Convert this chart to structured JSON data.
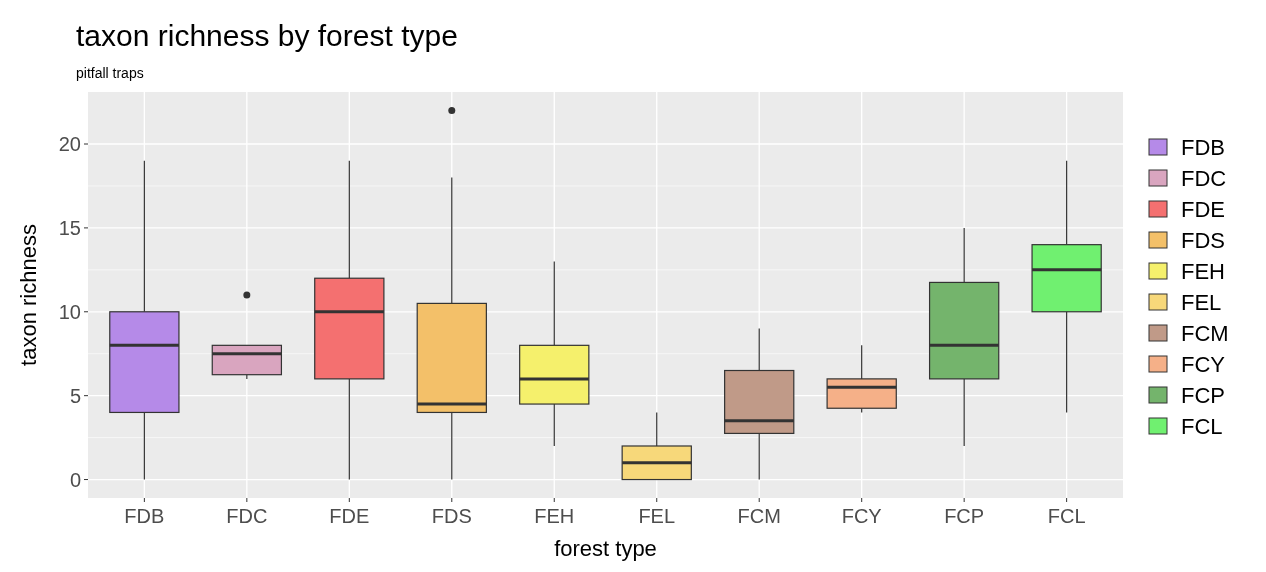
{
  "chart_data": {
    "type": "box",
    "title": "taxon richness by forest type",
    "subtitle": "pitfall traps",
    "xlabel": "forest type",
    "ylabel": "taxon richness",
    "categories": [
      "FDB",
      "FDC",
      "FDE",
      "FDS",
      "FEH",
      "FEL",
      "FCM",
      "FCY",
      "FCP",
      "FCL"
    ],
    "series": [
      {
        "name": "FDB",
        "color": "#b58ae8",
        "boxes": [
          {
            "low": 0,
            "q1": 4,
            "median": 8,
            "q3": 10,
            "high": 19
          },
          null,
          null,
          null,
          null,
          null,
          null,
          null,
          null,
          null
        ]
      },
      {
        "name": "FDC",
        "color": "#d9a5bf",
        "boxes": [
          null,
          {
            "low": 6,
            "q1": 6.25,
            "median": 7.5,
            "q3": 8,
            "high": 8,
            "outliers": [
              11
            ]
          },
          null,
          null,
          null,
          null,
          null,
          null,
          null,
          null
        ]
      },
      {
        "name": "FDE",
        "color": "#f47070",
        "boxes": [
          null,
          null,
          {
            "low": 0,
            "q1": 6,
            "median": 10,
            "q3": 12,
            "high": 19
          },
          null,
          null,
          null,
          null,
          null,
          null,
          null
        ]
      },
      {
        "name": "FDS",
        "color": "#f3c069",
        "boxes": [
          null,
          null,
          null,
          {
            "low": 0,
            "q1": 4,
            "median": 4.5,
            "q3": 10.5,
            "high": 18,
            "outliers": [
              22
            ]
          },
          null,
          null,
          null,
          null,
          null,
          null
        ]
      },
      {
        "name": "FEH",
        "color": "#f5f06c",
        "boxes": [
          null,
          null,
          null,
          null,
          {
            "low": 2,
            "q1": 4.5,
            "median": 6,
            "q3": 8,
            "high": 13
          },
          null,
          null,
          null,
          null,
          null
        ]
      },
      {
        "name": "FEL",
        "color": "#f7d87a",
        "boxes": [
          null,
          null,
          null,
          null,
          null,
          {
            "low": 0,
            "q1": 0,
            "median": 1,
            "q3": 2,
            "high": 4
          },
          null,
          null,
          null,
          null
        ]
      },
      {
        "name": "FCM",
        "color": "#c09a88",
        "boxes": [
          null,
          null,
          null,
          null,
          null,
          null,
          {
            "low": 0,
            "q1": 2.75,
            "median": 3.5,
            "q3": 6.5,
            "high": 9
          },
          null,
          null,
          null
        ]
      },
      {
        "name": "FCY",
        "color": "#f5b088",
        "boxes": [
          null,
          null,
          null,
          null,
          null,
          null,
          null,
          {
            "low": 4,
            "q1": 4.25,
            "median": 5.5,
            "q3": 6,
            "high": 8
          },
          null,
          null
        ]
      },
      {
        "name": "FCP",
        "color": "#74b46c",
        "boxes": [
          null,
          null,
          null,
          null,
          null,
          null,
          null,
          null,
          {
            "low": 2,
            "q1": 6,
            "median": 8,
            "q3": 11.75,
            "high": 15
          },
          null
        ]
      },
      {
        "name": "FCL",
        "color": "#70f070",
        "boxes": [
          null,
          null,
          null,
          null,
          null,
          null,
          null,
          null,
          null,
          {
            "low": 4,
            "q1": 10,
            "median": 12.5,
            "q3": 14,
            "high": 19
          }
        ]
      }
    ],
    "ylim": [
      -1.1,
      23.1
    ],
    "yticks": [
      0,
      5,
      10,
      15,
      20
    ],
    "grid": true,
    "legend": "right"
  }
}
